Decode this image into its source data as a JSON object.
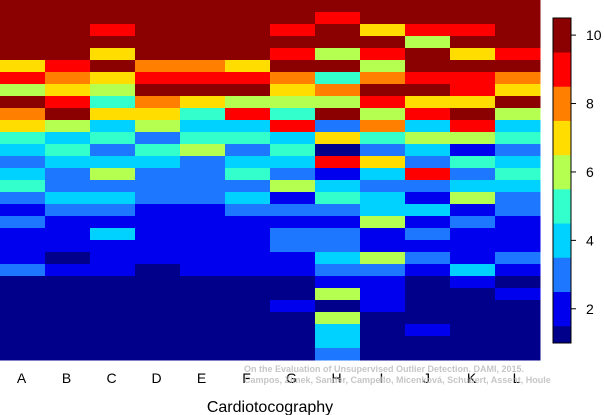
{
  "chart_data": {
    "type": "heatmap",
    "title": "",
    "xlabel": "Cardiotocography",
    "ylabel": "",
    "categories": [
      "A",
      "B",
      "C",
      "D",
      "E",
      "F",
      "G",
      "H",
      "I",
      "J",
      "K",
      "L"
    ],
    "row_count": 30,
    "color_scale": {
      "min": 1,
      "max": 10.5,
      "ticks": [
        2,
        4,
        6,
        8,
        10
      ],
      "tick_labels": [
        "2",
        "4",
        "6",
        "8",
        "10"
      ],
      "levels": [
        {
          "from": 0.5,
          "to": 1.5,
          "color": "#00008B"
        },
        {
          "from": 1.5,
          "to": 2.5,
          "color": "#0000EE"
        },
        {
          "from": 2.5,
          "to": 3.5,
          "color": "#1E78FF"
        },
        {
          "from": 3.5,
          "to": 4.5,
          "color": "#00D2FF"
        },
        {
          "from": 4.5,
          "to": 5.5,
          "color": "#33FFCC"
        },
        {
          "from": 5.5,
          "to": 6.5,
          "color": "#B4FF50"
        },
        {
          "from": 6.5,
          "to": 7.5,
          "color": "#FFDD00"
        },
        {
          "from": 7.5,
          "to": 8.5,
          "color": "#FF7F00"
        },
        {
          "from": 8.5,
          "to": 9.5,
          "color": "#FF0000"
        },
        {
          "from": 9.5,
          "to": 11.0,
          "color": "#8B0000"
        }
      ]
    },
    "series": [
      {
        "values": [
          10.5,
          10.5,
          10.5,
          10.5,
          10.5,
          10.5,
          10.5,
          10.5,
          10.5,
          10.5,
          10.5,
          10.5
        ]
      },
      {
        "values": [
          10.5,
          10.5,
          10.5,
          10.5,
          10.5,
          10.5,
          10.5,
          9,
          10.5,
          10.5,
          10.5,
          10.5
        ]
      },
      {
        "values": [
          10.5,
          10.5,
          9,
          10.5,
          10.5,
          10.5,
          9,
          10.5,
          7,
          9,
          9,
          10.5
        ]
      },
      {
        "values": [
          10.5,
          10.5,
          10.5,
          10.5,
          10.5,
          10.5,
          10.5,
          10.5,
          10.5,
          6,
          10.5,
          10.5
        ]
      },
      {
        "values": [
          10.5,
          10.5,
          7,
          10.5,
          10.5,
          10.5,
          9,
          6,
          9,
          10.5,
          7,
          9
        ]
      },
      {
        "values": [
          7,
          9,
          10.5,
          8,
          8,
          7,
          10.5,
          10.5,
          6,
          10.5,
          10.5,
          10.5
        ]
      },
      {
        "values": [
          9,
          8,
          7,
          9,
          9,
          9,
          8,
          5,
          8,
          9,
          9,
          8
        ]
      },
      {
        "values": [
          6,
          7,
          6,
          10.5,
          10.5,
          10.5,
          7,
          8,
          10.5,
          10.5,
          9,
          7
        ]
      },
      {
        "values": [
          10.5,
          9,
          5,
          8,
          7,
          6,
          6,
          6,
          9,
          7,
          7,
          10.5
        ]
      },
      {
        "values": [
          8,
          10.5,
          7,
          7,
          5,
          9,
          5,
          10.5,
          6,
          9,
          10.5,
          6
        ]
      },
      {
        "values": [
          7,
          6,
          4,
          6,
          4,
          4,
          9,
          3,
          8,
          4,
          9,
          4
        ]
      },
      {
        "values": [
          5,
          4,
          5,
          3,
          5,
          5,
          4,
          7,
          5,
          6,
          6,
          5
        ]
      },
      {
        "values": [
          4,
          5,
          3,
          5,
          6,
          3,
          5,
          1,
          3,
          4,
          2,
          3
        ]
      },
      {
        "values": [
          3,
          4,
          4,
          4,
          3,
          4,
          4,
          9,
          7,
          3,
          5,
          4
        ]
      },
      {
        "values": [
          4,
          3,
          6,
          3,
          3,
          5,
          3,
          2,
          4,
          9,
          3,
          5
        ]
      },
      {
        "values": [
          5,
          3,
          3,
          3,
          3,
          3,
          6,
          4,
          3,
          3,
          4,
          4
        ]
      },
      {
        "values": [
          3,
          4,
          4,
          3,
          3,
          4,
          2,
          5,
          4,
          2,
          6,
          3
        ]
      },
      {
        "values": [
          2,
          3,
          3,
          2,
          2,
          3,
          3,
          3,
          4,
          4,
          2,
          3
        ]
      },
      {
        "values": [
          3,
          2,
          2,
          2,
          2,
          2,
          2,
          2,
          6,
          2,
          3,
          2
        ]
      },
      {
        "values": [
          2,
          2,
          4,
          2,
          2,
          2,
          3,
          3,
          2,
          3,
          2,
          2
        ]
      },
      {
        "values": [
          2,
          2,
          2,
          2,
          2,
          2,
          3,
          3,
          2,
          2,
          2,
          2
        ]
      },
      {
        "values": [
          2,
          1,
          2,
          2,
          2,
          2,
          2,
          4,
          6,
          3,
          2,
          3
        ]
      },
      {
        "values": [
          3,
          2,
          2,
          1,
          2,
          2,
          2,
          3,
          3,
          2,
          4,
          2
        ]
      },
      {
        "values": [
          1,
          1,
          1,
          1,
          1,
          1,
          1,
          2,
          2,
          1,
          2,
          1
        ]
      },
      {
        "values": [
          1,
          1,
          1,
          1,
          1,
          1,
          1,
          6,
          2,
          1,
          1,
          2
        ]
      },
      {
        "values": [
          1,
          1,
          1,
          1,
          1,
          1,
          2,
          1,
          2,
          1,
          1,
          1
        ]
      },
      {
        "values": [
          1,
          1,
          1,
          1,
          1,
          1,
          1,
          6,
          1,
          1,
          1,
          1
        ]
      },
      {
        "values": [
          1,
          1,
          1,
          1,
          1,
          1,
          1,
          4,
          1,
          2,
          1,
          1
        ]
      },
      {
        "values": [
          1,
          1,
          1,
          1,
          1,
          1,
          1,
          4,
          1,
          1,
          1,
          1
        ]
      },
      {
        "values": [
          1,
          1,
          1,
          1,
          1,
          1,
          1,
          3,
          1,
          1,
          1,
          1
        ]
      }
    ],
    "credit": {
      "line1": "On the Evaluation of Unsupervised Outlier Detection. DAMI, 2015.",
      "line2": "Campos, Zimek, Sander, Campello, Micenková, Schubert, Assent, Houle"
    }
  }
}
